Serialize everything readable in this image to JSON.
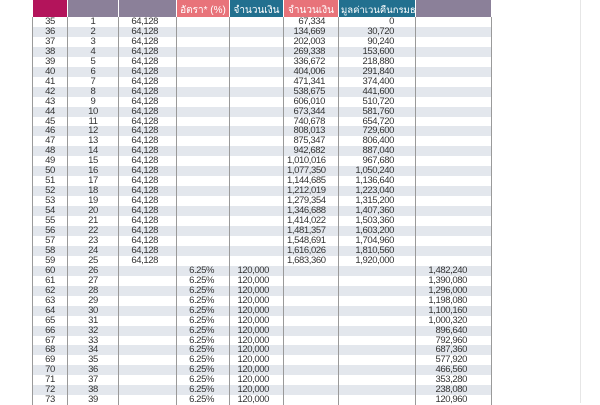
{
  "colors": {
    "header_magenta": "#b3145b",
    "header_purple": "#8b8099",
    "header_pink": "#e8737a",
    "header_teal": "#22708f",
    "row_alt": "#e3e7ed"
  },
  "table": {
    "headers": [
      "",
      "",
      "",
      "อัตรา* (%)",
      "จำนวนเงิน",
      "จำนวนเงิน",
      "มูลค่าเวนคืนกรมธรรม์",
      ""
    ],
    "rows": [
      [
        "35",
        "1",
        "64,128",
        "",
        "",
        "67,334",
        "0",
        ""
      ],
      [
        "36",
        "2",
        "64,128",
        "",
        "",
        "134,669",
        "30,720",
        ""
      ],
      [
        "37",
        "3",
        "64,128",
        "",
        "",
        "202,003",
        "90,240",
        ""
      ],
      [
        "38",
        "4",
        "64,128",
        "",
        "",
        "269,338",
        "153,600",
        ""
      ],
      [
        "39",
        "5",
        "64,128",
        "",
        "",
        "336,672",
        "218,880",
        ""
      ],
      [
        "40",
        "6",
        "64,128",
        "",
        "",
        "404,006",
        "291,840",
        ""
      ],
      [
        "41",
        "7",
        "64,128",
        "",
        "",
        "471,341",
        "374,400",
        ""
      ],
      [
        "42",
        "8",
        "64,128",
        "",
        "",
        "538,675",
        "441,600",
        ""
      ],
      [
        "43",
        "9",
        "64,128",
        "",
        "",
        "606,010",
        "510,720",
        ""
      ],
      [
        "44",
        "10",
        "64,128",
        "",
        "",
        "673,344",
        "581,760",
        ""
      ],
      [
        "45",
        "11",
        "64,128",
        "",
        "",
        "740,678",
        "654,720",
        ""
      ],
      [
        "46",
        "12",
        "64,128",
        "",
        "",
        "808,013",
        "729,600",
        ""
      ],
      [
        "47",
        "13",
        "64,128",
        "",
        "",
        "875,347",
        "806,400",
        ""
      ],
      [
        "48",
        "14",
        "64,128",
        "",
        "",
        "942,682",
        "887,040",
        ""
      ],
      [
        "49",
        "15",
        "64,128",
        "",
        "",
        "1,010,016",
        "967,680",
        ""
      ],
      [
        "50",
        "16",
        "64,128",
        "",
        "",
        "1,077,350",
        "1,050,240",
        ""
      ],
      [
        "51",
        "17",
        "64,128",
        "",
        "",
        "1,144,685",
        "1,136,640",
        ""
      ],
      [
        "52",
        "18",
        "64,128",
        "",
        "",
        "1,212,019",
        "1,223,040",
        ""
      ],
      [
        "53",
        "19",
        "64,128",
        "",
        "",
        "1,279,354",
        "1,315,200",
        ""
      ],
      [
        "54",
        "20",
        "64,128",
        "",
        "",
        "1,346,688",
        "1,407,360",
        ""
      ],
      [
        "55",
        "21",
        "64,128",
        "",
        "",
        "1,414,022",
        "1,503,360",
        ""
      ],
      [
        "56",
        "22",
        "64,128",
        "",
        "",
        "1,481,357",
        "1,603,200",
        ""
      ],
      [
        "57",
        "23",
        "64,128",
        "",
        "",
        "1,548,691",
        "1,704,960",
        ""
      ],
      [
        "58",
        "24",
        "64,128",
        "",
        "",
        "1,616,026",
        "1,810,560",
        ""
      ],
      [
        "59",
        "25",
        "64,128",
        "",
        "",
        "1,683,360",
        "1,920,000",
        ""
      ],
      [
        "60",
        "26",
        "",
        "6.25%",
        "120,000",
        "",
        "",
        "1,482,240"
      ],
      [
        "61",
        "27",
        "",
        "6.25%",
        "120,000",
        "",
        "",
        "1,390,080"
      ],
      [
        "62",
        "28",
        "",
        "6.25%",
        "120,000",
        "",
        "",
        "1,296,000"
      ],
      [
        "63",
        "29",
        "",
        "6.25%",
        "120,000",
        "",
        "",
        "1,198,080"
      ],
      [
        "64",
        "30",
        "",
        "6.25%",
        "120,000",
        "",
        "",
        "1,100,160"
      ],
      [
        "65",
        "31",
        "",
        "6.25%",
        "120,000",
        "",
        "",
        "1,000,320"
      ],
      [
        "66",
        "32",
        "",
        "6.25%",
        "120,000",
        "",
        "",
        "896,640"
      ],
      [
        "67",
        "33",
        "",
        "6.25%",
        "120,000",
        "",
        "",
        "792,960"
      ],
      [
        "68",
        "34",
        "",
        "6.25%",
        "120,000",
        "",
        "",
        "687,360"
      ],
      [
        "69",
        "35",
        "",
        "6.25%",
        "120,000",
        "",
        "",
        "577,920"
      ],
      [
        "70",
        "36",
        "",
        "6.25%",
        "120,000",
        "",
        "",
        "466,560"
      ],
      [
        "71",
        "37",
        "",
        "6.25%",
        "120,000",
        "",
        "",
        "353,280"
      ],
      [
        "72",
        "38",
        "",
        "6.25%",
        "120,000",
        "",
        "",
        "238,080"
      ],
      [
        "73",
        "39",
        "",
        "6.25%",
        "120,000",
        "",
        "",
        "120,960"
      ]
    ]
  }
}
